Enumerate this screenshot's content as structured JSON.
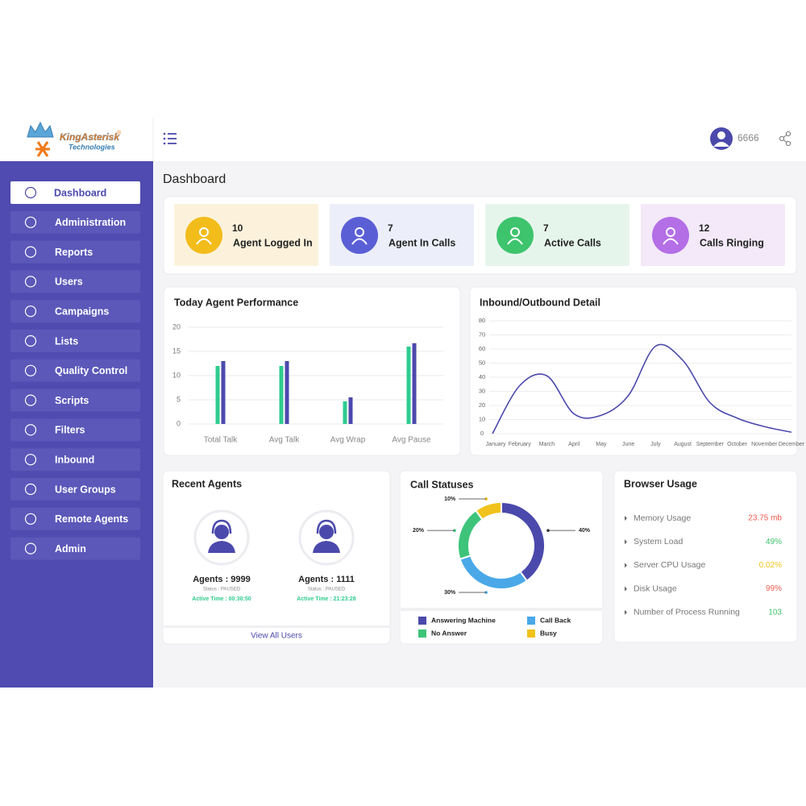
{
  "header": {
    "logo": {
      "name": "KingAsterisk",
      "registered": "®",
      "tagline": "Technologies"
    },
    "user": "6666"
  },
  "sidebar": {
    "items": [
      "Dashboard",
      "Administration",
      "Reports",
      "Users",
      "Campaigns",
      "Lists",
      "Quality Control",
      "Scripts",
      "Filters",
      "Inbound",
      "User Groups",
      "Remote Agents",
      "Admin"
    ]
  },
  "page_title": "Dashboard",
  "stats": [
    {
      "value": 10,
      "label": "Agent Logged In",
      "color": "#f2bc1b",
      "background": "#fcf2dc"
    },
    {
      "value": 7,
      "label": "Agent In Calls",
      "color": "#5b5fd6",
      "background": "#eceff9"
    },
    {
      "value": 7,
      "label": "Active Calls",
      "color": "#3ec46d",
      "background": "#e6f5ec"
    },
    {
      "value": 12,
      "label": "Calls Ringing",
      "color": "#b46ee6",
      "background": "#f3e9f9"
    }
  ],
  "chart_data": [
    {
      "type": "bar",
      "title": "Today Agent Performance",
      "categories": [
        "Total Talk",
        "Avg Talk",
        "Avg Wrap",
        "Avg Pause"
      ],
      "series": [
        {
          "color": "#2ecc8f",
          "values": [
            12,
            12,
            4.7,
            16
          ]
        },
        {
          "color": "#4b49ac",
          "values": [
            13,
            13,
            5.5,
            16.7
          ]
        }
      ],
      "ylim": [
        0,
        20
      ],
      "yticks": [
        0,
        5,
        10,
        15,
        20
      ],
      "grid": true
    },
    {
      "type": "line",
      "title": "Inbound/Outbound Detail",
      "categories": [
        "January",
        "February",
        "March",
        "April",
        "May",
        "June",
        "July",
        "August",
        "September",
        "October",
        "November",
        "December"
      ],
      "values": [
        0,
        34,
        41,
        14,
        13,
        27,
        62,
        52,
        22,
        11,
        5,
        1
      ],
      "color": "#4b49ac",
      "ylim": [
        0,
        80
      ],
      "yticks": [
        0,
        10,
        20,
        30,
        40,
        50,
        60,
        70,
        80
      ],
      "grid": true
    },
    {
      "type": "pie",
      "title": "Call Statuses",
      "categories": [
        "Answering Machine",
        "Call Back",
        "No Answer",
        "Busy"
      ],
      "values": [
        40,
        30,
        20,
        10
      ],
      "value_labels": [
        "40%",
        "30%",
        "20%",
        "10%"
      ],
      "colors": [
        "#4b49ac",
        "#4aa8e8",
        "#3ec47a",
        "#f1c21b"
      ],
      "donut": true
    }
  ],
  "recent_agents": {
    "title": "Recent Agents",
    "agents": [
      {
        "name": "Agents : 9999",
        "status": "Status : PAUSED",
        "active_time": "Active Time : 00:30:50"
      },
      {
        "name": "Agents : 1111",
        "status": "Status : PAUSED",
        "active_time": "Active Time : 21:23:28"
      }
    ],
    "link": "View All Users"
  },
  "browser_usage": {
    "title": "Browser Usage",
    "items": [
      {
        "label": "Memory Usage",
        "value": "23.75 mb",
        "color": "#f05a4f"
      },
      {
        "label": "System Load",
        "value": "49%",
        "color": "#3ec46d"
      },
      {
        "label": "Server CPU Usage",
        "value": "0.02%",
        "color": "#f1c21b"
      },
      {
        "label": "Disk Usage",
        "value": "99%",
        "color": "#f05a4f"
      },
      {
        "label": "Number of Process Running",
        "value": "103",
        "color": "#3ec46d"
      }
    ]
  }
}
